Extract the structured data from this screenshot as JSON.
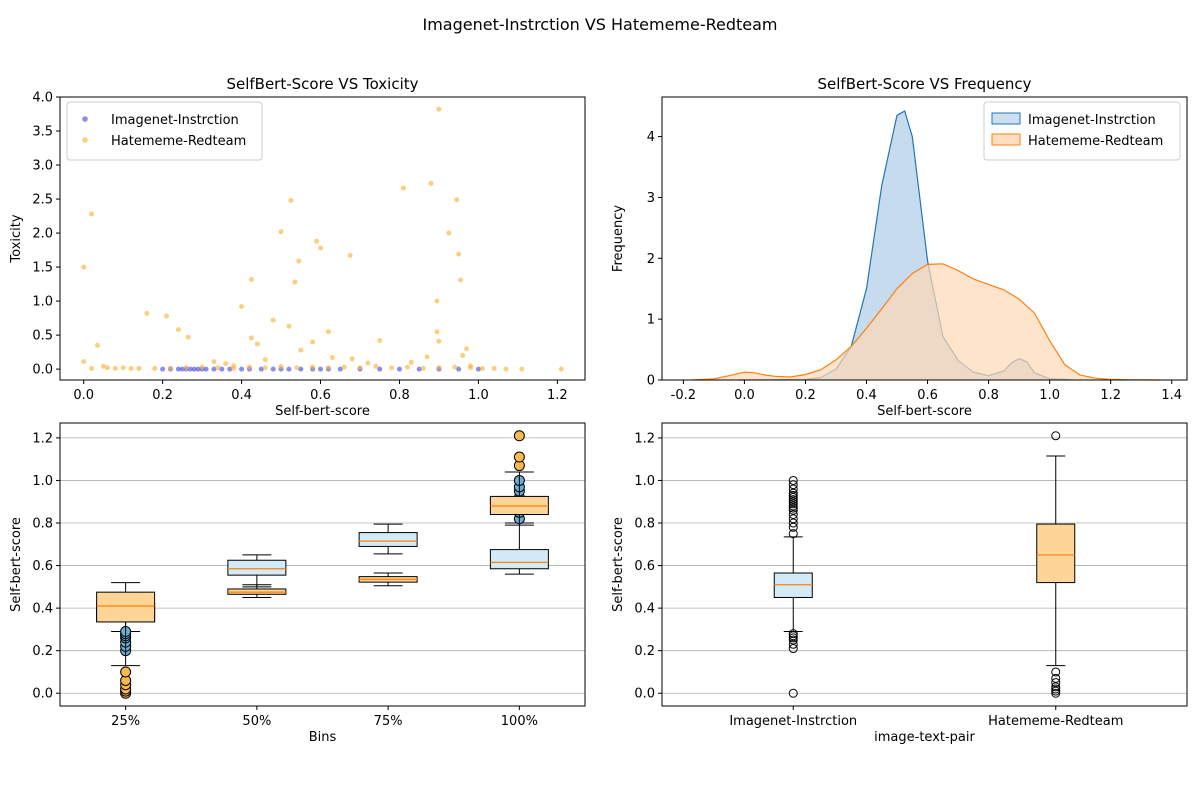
{
  "suptitle": "Imagenet-Instrction  VS  Hatememe-Redteam",
  "colors": {
    "imagenet_scatter": "#3f3fe6",
    "hatememe_scatter": "#f5b02e",
    "kde_imagenet_line": "#1f77b4",
    "kde_imagenet_fill": "#c3d9ec",
    "kde_hatememe_line": "#ff7f0e",
    "kde_hatememe_fill": "#fdd9b5",
    "box_hatememe_fill": "#fdd596",
    "box_imagenet_fill": "#d2ebf7",
    "median": "#ff7f0e",
    "flier_blue": "#6aaed6",
    "flier_orange": "#f8b94e",
    "grid": "#b0b0b0"
  },
  "chart_data": [
    {
      "id": "scatter",
      "type": "scatter",
      "title": "SelfBert-Score VS Toxicity",
      "xlabel": "Self-bert-score",
      "ylabel": "Toxicity",
      "xlim": [
        -0.06,
        1.27
      ],
      "ylim": [
        -0.16,
        4.0
      ],
      "xticks": [
        0.0,
        0.2,
        0.4,
        0.6,
        0.8,
        1.0,
        1.2
      ],
      "yticks": [
        0.0,
        0.5,
        1.0,
        1.5,
        2.0,
        2.5,
        3.0,
        3.5,
        4.0
      ],
      "legend": "top-left",
      "grid": false,
      "series": [
        {
          "name": "Imagenet-Instrction",
          "points": [
            [
              0.2,
              0
            ],
            [
              0.22,
              0
            ],
            [
              0.24,
              0
            ],
            [
              0.25,
              0
            ],
            [
              0.26,
              0
            ],
            [
              0.27,
              0
            ],
            [
              0.28,
              0
            ],
            [
              0.29,
              0
            ],
            [
              0.3,
              0
            ],
            [
              0.31,
              0
            ],
            [
              0.33,
              0
            ],
            [
              0.35,
              0
            ],
            [
              0.37,
              0
            ],
            [
              0.4,
              0
            ],
            [
              0.42,
              0
            ],
            [
              0.45,
              0
            ],
            [
              0.48,
              0
            ],
            [
              0.5,
              0
            ],
            [
              0.52,
              0
            ],
            [
              0.55,
              0
            ],
            [
              0.58,
              0
            ],
            [
              0.6,
              0
            ],
            [
              0.62,
              0
            ],
            [
              0.65,
              0
            ],
            [
              0.7,
              0
            ],
            [
              0.75,
              0
            ],
            [
              0.8,
              0
            ],
            [
              0.85,
              0
            ],
            [
              0.9,
              0
            ],
            [
              0.95,
              0
            ],
            [
              1.0,
              0
            ]
          ]
        },
        {
          "name": "Hatememe-Redteam",
          "points": [
            [
              0.0,
              1.5
            ],
            [
              0.02,
              2.28
            ],
            [
              0.0,
              0.11
            ],
            [
              0.035,
              0.35
            ],
            [
              0.05,
              0.04
            ],
            [
              0.06,
              0.02
            ],
            [
              0.1,
              0.02
            ],
            [
              0.16,
              0.82
            ],
            [
              0.21,
              0.78
            ],
            [
              0.24,
              0.58
            ],
            [
              0.265,
              0.47
            ],
            [
              0.4,
              0.92
            ],
            [
              0.425,
              1.32
            ],
            [
              0.425,
              0.46
            ],
            [
              0.44,
              0.37
            ],
            [
              0.48,
              0.72
            ],
            [
              0.5,
              2.02
            ],
            [
              0.525,
              2.48
            ],
            [
              0.52,
              0.63
            ],
            [
              0.535,
              1.28
            ],
            [
              0.545,
              1.59
            ],
            [
              0.55,
              0.28
            ],
            [
              0.58,
              0.4
            ],
            [
              0.59,
              1.88
            ],
            [
              0.6,
              1.78
            ],
            [
              0.62,
              0.55
            ],
            [
              0.675,
              1.67
            ],
            [
              0.75,
              0.42
            ],
            [
              0.81,
              2.66
            ],
            [
              0.88,
              2.73
            ],
            [
              0.895,
              1.0
            ],
            [
              0.895,
              0.55
            ],
            [
              0.9,
              3.82
            ],
            [
              0.9,
              0.41
            ],
            [
              0.925,
              2.0
            ],
            [
              0.945,
              2.49
            ],
            [
              0.95,
              1.69
            ],
            [
              0.955,
              1.31
            ],
            [
              0.97,
              0.3
            ],
            [
              0.96,
              0.2
            ],
            [
              0.98,
              0.05
            ],
            [
              0.33,
              0.11
            ],
            [
              0.36,
              0.08
            ],
            [
              0.38,
              0.05
            ],
            [
              0.46,
              0.14
            ],
            [
              0.63,
              0.17
            ],
            [
              0.68,
              0.15
            ],
            [
              0.72,
              0.09
            ],
            [
              0.83,
              0.1
            ],
            [
              0.87,
              0.18
            ],
            [
              0.02,
              0.01
            ],
            [
              0.08,
              0.01
            ],
            [
              0.12,
              0.01
            ],
            [
              0.14,
              0.01
            ],
            [
              0.18,
              0.01
            ],
            [
              0.22,
              0.01
            ],
            [
              0.26,
              0.02
            ],
            [
              0.3,
              0.03
            ],
            [
              0.34,
              0.02
            ],
            [
              0.38,
              0.01
            ],
            [
              0.42,
              0.03
            ],
            [
              0.46,
              0.02
            ],
            [
              0.5,
              0.04
            ],
            [
              0.54,
              0.02
            ],
            [
              0.58,
              0.03
            ],
            [
              0.62,
              0.02
            ],
            [
              0.66,
              0.03
            ],
            [
              0.7,
              0.02
            ],
            [
              0.74,
              0.04
            ],
            [
              0.78,
              0.02
            ],
            [
              0.82,
              0.03
            ],
            [
              0.86,
              0.01
            ],
            [
              0.9,
              0.02
            ],
            [
              0.94,
              0.03
            ],
            [
              0.98,
              0.02
            ],
            [
              1.01,
              0.01
            ],
            [
              1.04,
              0.01
            ],
            [
              1.07,
              0.0
            ],
            [
              1.11,
              0.0
            ],
            [
              1.21,
              0.0
            ]
          ]
        }
      ]
    },
    {
      "id": "kde",
      "type": "area",
      "title": "SelfBert-Score VS Frequency",
      "xlabel": "Self-bert-score",
      "ylabel": "Frequency",
      "xlim": [
        -0.27,
        1.45
      ],
      "ylim": [
        0,
        4.65
      ],
      "xticks": [
        -0.2,
        0.0,
        0.2,
        0.4,
        0.6,
        0.8,
        1.0,
        1.2,
        1.4
      ],
      "yticks": [
        0,
        1,
        2,
        3,
        4
      ],
      "legend": "top-right",
      "grid": false,
      "series": [
        {
          "name": "Imagenet-Instrction",
          "x": [
            -0.02,
            0.2,
            0.25,
            0.3,
            0.35,
            0.4,
            0.45,
            0.5,
            0.525,
            0.55,
            0.6,
            0.65,
            0.7,
            0.75,
            0.8,
            0.85,
            0.875,
            0.9,
            0.925,
            0.95,
            1.0,
            1.05,
            1.08
          ],
          "y": [
            0,
            0.01,
            0.04,
            0.18,
            0.55,
            1.5,
            3.2,
            4.35,
            4.42,
            4.0,
            1.95,
            0.72,
            0.32,
            0.13,
            0.07,
            0.15,
            0.28,
            0.35,
            0.3,
            0.12,
            0.02,
            0.01,
            0
          ]
        },
        {
          "name": "Hatememe-Redteam",
          "x": [
            -0.17,
            -0.1,
            -0.05,
            0.0,
            0.03,
            0.07,
            0.1,
            0.15,
            0.2,
            0.25,
            0.3,
            0.35,
            0.4,
            0.45,
            0.5,
            0.55,
            0.6,
            0.65,
            0.7,
            0.75,
            0.8,
            0.85,
            0.9,
            0.95,
            1.0,
            1.05,
            1.1,
            1.15,
            1.2,
            1.27,
            1.36
          ],
          "y": [
            0,
            0.02,
            0.07,
            0.13,
            0.12,
            0.08,
            0.06,
            0.05,
            0.09,
            0.17,
            0.33,
            0.55,
            0.85,
            1.17,
            1.5,
            1.75,
            1.9,
            1.91,
            1.8,
            1.66,
            1.57,
            1.48,
            1.33,
            1.1,
            0.65,
            0.25,
            0.08,
            0.03,
            0.01,
            0.003,
            0
          ]
        }
      ]
    },
    {
      "id": "bins",
      "type": "box",
      "xlabel": "Bins",
      "ylabel": "Self-bert-score",
      "ylim": [
        -0.06,
        1.27
      ],
      "yticks": [
        0.0,
        0.2,
        0.4,
        0.6,
        0.8,
        1.0,
        1.2
      ],
      "categories": [
        "25%",
        "50%",
        "75%",
        "100%"
      ],
      "grid": "y",
      "boxes": [
        {
          "cat": 0,
          "group": "Imagenet-Instrction",
          "min": 0.29,
          "q1": 0.34,
          "median": 0.38,
          "q3": 0.42,
          "max": 0.45,
          "fliers": [
            0.2,
            0.22,
            0.24,
            0.26,
            0.27,
            0.28,
            0.29
          ]
        },
        {
          "cat": 0,
          "group": "Hatememe-Redteam",
          "min": 0.13,
          "q1": 0.335,
          "median": 0.41,
          "q3": 0.475,
          "max": 0.52,
          "fliers": [
            0.0,
            0.01,
            0.02,
            0.04,
            0.06,
            0.1
          ]
        },
        {
          "cat": 1,
          "group": "Hatememe-Redteam",
          "min": 0.45,
          "q1": 0.465,
          "median": 0.475,
          "q3": 0.49,
          "max": 0.51,
          "fliers": []
        },
        {
          "cat": 1,
          "group": "Imagenet-Instrction",
          "min": 0.5,
          "q1": 0.555,
          "median": 0.585,
          "q3": 0.625,
          "max": 0.65,
          "fliers": []
        },
        {
          "cat": 2,
          "group": "Hatememe-Redteam",
          "min": 0.505,
          "q1": 0.522,
          "median": 0.535,
          "q3": 0.548,
          "max": 0.565,
          "fliers": []
        },
        {
          "cat": 2,
          "group": "Imagenet-Instrction",
          "min": 0.655,
          "q1": 0.69,
          "median": 0.715,
          "q3": 0.755,
          "max": 0.795,
          "fliers": []
        },
        {
          "cat": 3,
          "group": "Imagenet-Instrction",
          "min": 0.56,
          "q1": 0.585,
          "median": 0.615,
          "q3": 0.675,
          "max": 0.8,
          "fliers": [
            0.82,
            0.85,
            0.88,
            0.9,
            0.92,
            0.95,
            0.97,
            1.0
          ]
        },
        {
          "cat": 3,
          "group": "Hatememe-Redteam",
          "min": 0.79,
          "q1": 0.84,
          "median": 0.88,
          "q3": 0.925,
          "max": 1.04,
          "fliers": [
            1.07,
            1.11,
            1.21
          ]
        }
      ]
    },
    {
      "id": "pairs",
      "type": "box",
      "xlabel": "image-text-pair",
      "ylabel": "Self-bert-score",
      "ylim": [
        -0.06,
        1.27
      ],
      "yticks": [
        0.0,
        0.2,
        0.4,
        0.6,
        0.8,
        1.0,
        1.2
      ],
      "categories": [
        "Imagenet-Instrction",
        "Hatememe-Redteam"
      ],
      "grid": "y",
      "boxes": [
        {
          "cat": 0,
          "group": "Imagenet-Instrction",
          "min": 0.29,
          "q1": 0.45,
          "median": 0.51,
          "q3": 0.565,
          "max": 0.735,
          "fliers": [
            0.0,
            0.21,
            0.23,
            0.25,
            0.26,
            0.27,
            0.28,
            0.75,
            0.78,
            0.8,
            0.82,
            0.84,
            0.86,
            0.87,
            0.88,
            0.89,
            0.9,
            0.91,
            0.92,
            0.93,
            0.94,
            0.96,
            0.98,
            1.0
          ]
        },
        {
          "cat": 1,
          "group": "Hatememe-Redteam",
          "min": 0.13,
          "q1": 0.52,
          "median": 0.65,
          "q3": 0.795,
          "max": 1.115,
          "fliers": [
            0.0,
            0.01,
            0.02,
            0.03,
            0.05,
            0.07,
            0.1,
            1.21
          ]
        }
      ]
    }
  ]
}
